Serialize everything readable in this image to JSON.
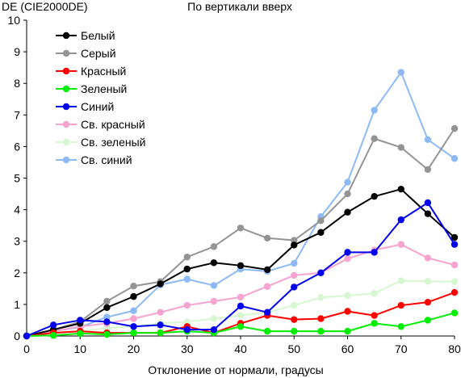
{
  "chart_data": {
    "type": "line",
    "title": "По вертикали вверх",
    "ylabel": "DE (CIE2000DE)",
    "xlabel": "Отклонение от нормали, градусы",
    "x": [
      0,
      5,
      10,
      15,
      20,
      25,
      30,
      35,
      40,
      45,
      50,
      55,
      60,
      65,
      70,
      75,
      80
    ],
    "xlim": [
      0,
      80
    ],
    "ylim": [
      0,
      10
    ],
    "xticks": [
      0,
      10,
      20,
      30,
      40,
      50,
      60,
      70,
      80
    ],
    "yticks": [
      0,
      1,
      2,
      3,
      4,
      5,
      6,
      7,
      8,
      9,
      10
    ],
    "grid": false,
    "legend_position": "top-left",
    "series": [
      {
        "name": "Белый",
        "color": "#000000",
        "values": [
          0,
          0.2,
          0.4,
          0.9,
          1.25,
          1.65,
          2.12,
          2.32,
          2.23,
          2.1,
          2.88,
          3.28,
          3.92,
          4.42,
          4.65,
          3.87,
          3.12
        ]
      },
      {
        "name": "Серый",
        "color": "#949494",
        "values": [
          0,
          0.2,
          0.45,
          1.1,
          1.58,
          1.72,
          2.5,
          2.83,
          3.42,
          3.1,
          3.03,
          3.65,
          4.5,
          6.25,
          5.97,
          5.27,
          6.57
        ]
      },
      {
        "name": "Красный",
        "color": "#ff0000",
        "values": [
          0,
          0.1,
          0.15,
          0.1,
          0.1,
          0.1,
          0.3,
          0.1,
          0.4,
          0.65,
          0.52,
          0.55,
          0.78,
          0.65,
          0.97,
          1.07,
          1.38
        ]
      },
      {
        "name": "Зеленый",
        "color": "#00ee00",
        "values": [
          0,
          0.02,
          0.08,
          0.05,
          0.1,
          0.1,
          0.15,
          0.1,
          0.3,
          0.15,
          0.15,
          0.15,
          0.15,
          0.4,
          0.3,
          0.5,
          0.73
        ]
      },
      {
        "name": "Синий",
        "color": "#0000ee",
        "values": [
          0,
          0.35,
          0.5,
          0.45,
          0.3,
          0.35,
          0.2,
          0.2,
          0.95,
          0.75,
          1.55,
          2.0,
          2.65,
          2.65,
          3.68,
          4.22,
          2.9
        ]
      },
      {
        "name": "Св. красный",
        "color": "#f7a3d0",
        "values": [
          0,
          0.15,
          0.3,
          0.4,
          0.55,
          0.75,
          0.97,
          1.1,
          1.23,
          1.57,
          1.92,
          2.0,
          2.45,
          2.72,
          2.9,
          2.47,
          2.25
        ]
      },
      {
        "name": "Св. зеленый",
        "color": "#d6f7d0",
        "values": [
          0,
          0.1,
          0.15,
          0.25,
          0.3,
          0.4,
          0.45,
          0.55,
          0.65,
          0.75,
          0.97,
          1.22,
          1.28,
          1.35,
          1.75,
          1.73,
          1.72
        ]
      },
      {
        "name": "Св. синий",
        "color": "#8dbaf5",
        "values": [
          0,
          0.15,
          0.28,
          0.6,
          0.8,
          1.62,
          1.8,
          1.6,
          2.12,
          2.05,
          2.3,
          3.78,
          4.87,
          7.15,
          8.35,
          6.22,
          5.62
        ]
      }
    ]
  }
}
